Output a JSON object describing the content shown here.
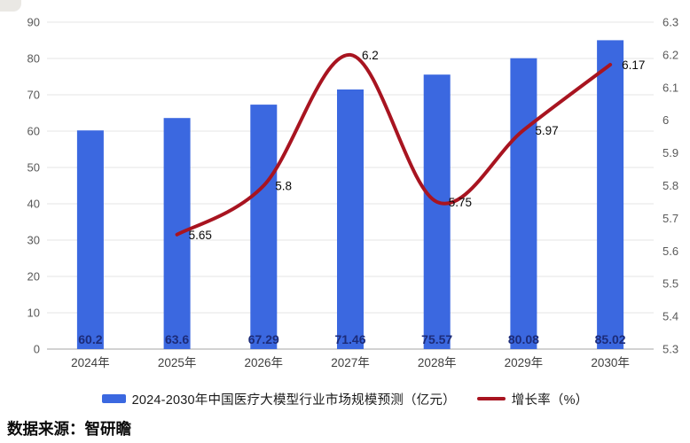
{
  "chart_data": {
    "type": "combo",
    "categories": [
      "2024年",
      "2025年",
      "2026年",
      "2027年",
      "2028年",
      "2029年",
      "2030年"
    ],
    "series": [
      {
        "name": "2024-2030年中国医疗大模型行业市场规模预测（亿元）",
        "type": "bar",
        "axis": "left",
        "values": [
          60.2,
          63.6,
          67.29,
          71.46,
          75.57,
          80.08,
          85.02
        ],
        "value_labels": [
          "60.2",
          "63.6",
          "67.29",
          "71.46",
          "75.57",
          "80.08",
          "85.02"
        ],
        "color": "#3b68e0",
        "value_label_color": "#1c2b78"
      },
      {
        "name": "增长率（%）",
        "type": "line",
        "axis": "right",
        "values": [
          null,
          5.65,
          5.8,
          6.2,
          5.75,
          5.97,
          6.17
        ],
        "value_labels": [
          null,
          "5.65",
          "5.8",
          "6.2",
          "5.75",
          "5.97",
          "6.17"
        ],
        "color": "#a81420",
        "value_label_color": "#0a0a0a"
      }
    ],
    "left_axis": {
      "min": 0,
      "max": 90,
      "step": 10,
      "ticks": [
        "0",
        "10",
        "20",
        "30",
        "40",
        "50",
        "60",
        "70",
        "80",
        "90"
      ]
    },
    "right_axis": {
      "min": 5.3,
      "max": 6.3,
      "step": 0.1,
      "ticks": [
        "5.3",
        "5.4",
        "5.5",
        "5.6",
        "5.7",
        "5.8",
        "5.9",
        "6",
        "6.1",
        "6.2",
        "6.3"
      ]
    },
    "grid": true,
    "legend_position": "bottom",
    "title": "",
    "xlabel": "",
    "ylabel": ""
  },
  "colors": {
    "bar_blue": "#3b68e0",
    "line_red": "#a81420",
    "gridline": "#e4e4e4",
    "axis_line": "#c3c3c3",
    "tick_text": "#595959",
    "category_text": "#404040"
  },
  "source": {
    "text": "数据来源：智研瞻"
  }
}
